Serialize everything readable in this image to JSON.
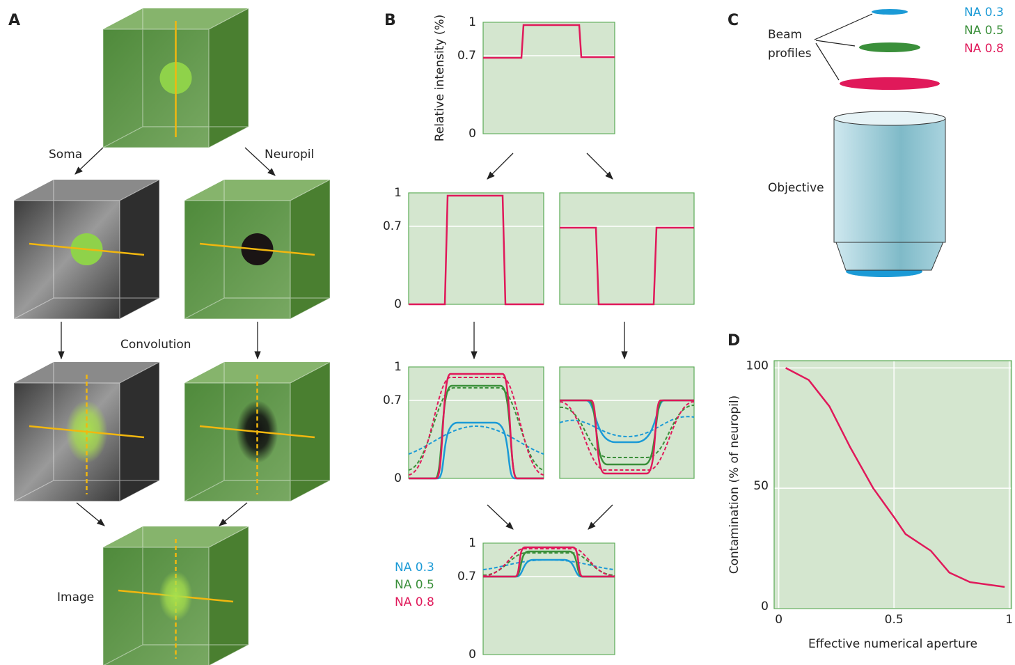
{
  "panel_labels": [
    "A",
    "B",
    "C",
    "D"
  ],
  "panel_a": {
    "soma": "Soma",
    "neuropil": "Neuropil",
    "convolution": "Convolution",
    "image": "Image"
  },
  "panel_b": {
    "y_label": "Relative intensity (%)",
    "ylim": [
      0,
      1
    ],
    "yticks": [
      0,
      0.7,
      1
    ],
    "legend": [
      {
        "name": "NA 0.3",
        "color": "#1b9ad6"
      },
      {
        "name": "NA 0.5",
        "color": "#3a8f3a"
      },
      {
        "name": "NA 0.8",
        "color": "#e0195a"
      }
    ]
  },
  "panel_c": {
    "beam_label": [
      "Beam",
      "profiles"
    ],
    "objective_label": "Objective"
  },
  "chart_data": {
    "type": "line",
    "x_label": "Effective numerical aperture",
    "y_label": "Contamination (% of neuropil)",
    "x": [
      0.03,
      0.13,
      0.22,
      0.31,
      0.41,
      0.5,
      0.55,
      0.66,
      0.74,
      0.83,
      0.98
    ],
    "values": [
      100,
      95,
      84,
      67,
      50,
      38,
      31,
      24,
      15,
      11,
      9
    ],
    "color": "#e0195a",
    "xlim": [
      -0.02,
      1.01
    ],
    "ylim": [
      0,
      103
    ],
    "xticks": [
      0,
      0.5,
      1
    ],
    "yticks": [
      0,
      50,
      100
    ],
    "grid": true
  }
}
